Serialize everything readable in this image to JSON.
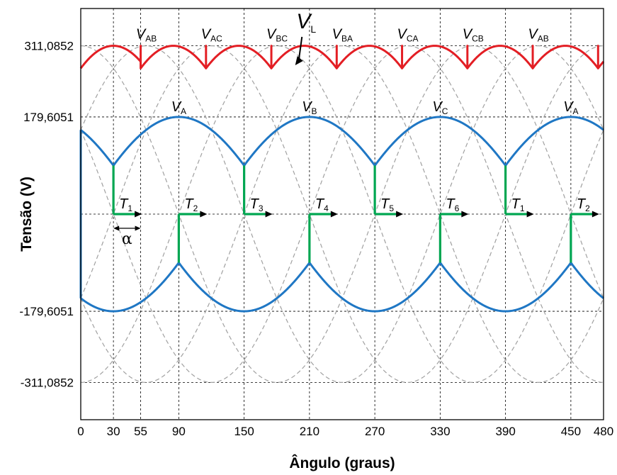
{
  "chart_data": {
    "type": "line",
    "xlabel": "Ângulo (graus)",
    "ylabel": "Tensão (V)",
    "xlim": [
      0,
      480
    ],
    "ylim": [
      -380,
      380
    ],
    "x_ticks": [
      0,
      30,
      55,
      90,
      150,
      210,
      270,
      330,
      390,
      450,
      480
    ],
    "x_tick_labels": [
      "0",
      "30",
      "55",
      "90",
      "150",
      "210",
      "270",
      "330",
      "390",
      "450",
      "480"
    ],
    "y_ticks": [
      311.0852,
      179.6051,
      -179.6051,
      -311.0852
    ],
    "y_tick_labels": [
      "311,0852",
      "179,6051",
      "-179,6051",
      "-311,0852"
    ],
    "grid": true,
    "phase_amplitude": 179.6051,
    "line_amplitude": 311.0852,
    "firing_angle_deg": 30,
    "series": [
      {
        "id": "phase-envelope-pos",
        "color": "#1f77c4",
        "description_values": "max(vA,vB,vC)"
      },
      {
        "id": "phase-envelope-neg",
        "color": "#1f77c4",
        "description_values": "min(vA,vB,vC)"
      },
      {
        "id": "rectified-line-voltage",
        "color": "#e31e24",
        "segment_boundaries_deg": [
          0,
          55,
          115,
          175,
          235,
          295,
          355,
          415,
          475,
          480
        ]
      },
      {
        "id": "line-voltages-dashed",
        "color": "#a0a0a0"
      }
    ],
    "line_labels": [
      {
        "name": "V",
        "sub": "AB",
        "x": 55
      },
      {
        "name": "V",
        "sub": "AC",
        "x": 115
      },
      {
        "name": "V",
        "sub": "BC",
        "x": 175
      },
      {
        "name": "V",
        "sub": "BA",
        "x": 235
      },
      {
        "name": "V",
        "sub": "CA",
        "x": 295
      },
      {
        "name": "V",
        "sub": "CB",
        "x": 355
      },
      {
        "name": "V",
        "sub": "AB",
        "x": 415
      }
    ],
    "phase_labels": [
      {
        "name": "V",
        "sub": "A",
        "x": 90
      },
      {
        "name": "V",
        "sub": "B",
        "x": 210
      },
      {
        "name": "V",
        "sub": "C",
        "x": 330
      },
      {
        "name": "V",
        "sub": "A",
        "x": 450
      }
    ],
    "vl_label": {
      "name": "V",
      "sub": "L"
    },
    "thyristor_pulses": [
      {
        "name": "T",
        "sub": "1",
        "x": 30,
        "dir": "up"
      },
      {
        "name": "T",
        "sub": "2",
        "x": 90,
        "dir": "down"
      },
      {
        "name": "T",
        "sub": "3",
        "x": 150,
        "dir": "up"
      },
      {
        "name": "T",
        "sub": "4",
        "x": 210,
        "dir": "down"
      },
      {
        "name": "T",
        "sub": "5",
        "x": 270,
        "dir": "up"
      },
      {
        "name": "T",
        "sub": "6",
        "x": 330,
        "dir": "down"
      },
      {
        "name": "T",
        "sub": "1",
        "x": 390,
        "dir": "up"
      },
      {
        "name": "T",
        "sub": "2",
        "x": 450,
        "dir": "down"
      }
    ],
    "alpha_label": "α",
    "colors": {
      "phase": "#1f77c4",
      "line": "#e31e24",
      "pulse": "#00a651",
      "dashed": "#a0a0a0",
      "grid": "#000000"
    }
  }
}
